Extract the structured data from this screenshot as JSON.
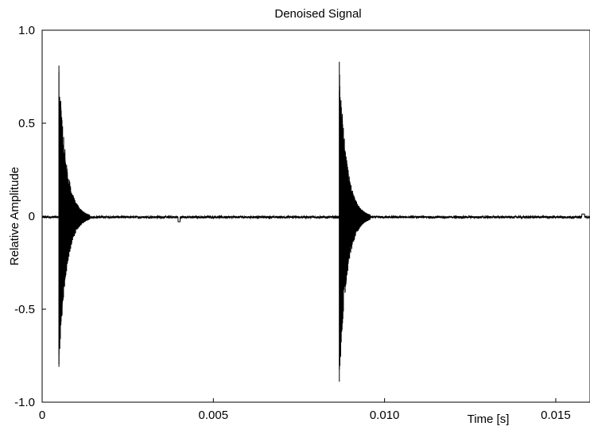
{
  "chart_data": {
    "type": "line",
    "title": "Denoised Signal",
    "xlabel": "Time [s]",
    "ylabel": "Relative Amplitude",
    "xlim": [
      0,
      0.016
    ],
    "ylim": [
      -1.0,
      1.0
    ],
    "x_ticks": [
      0,
      0.005,
      0.01,
      0.015
    ],
    "x_tick_labels": [
      "0",
      "0.005",
      "0.010",
      "0.015"
    ],
    "y_ticks": [
      1.0,
      0.5,
      0,
      -0.5,
      -1.0
    ],
    "y_tick_labels": [
      "1.0",
      "0.5",
      "0",
      "-0.5",
      "-1.0"
    ],
    "grid": false,
    "series": [
      {
        "color": "#000000",
        "baseline": -0.005,
        "bursts": [
          {
            "onset": 0.00049,
            "peak_pos": 0.81,
            "peak_neg": -0.81,
            "decay_s": 0.00022,
            "duration_s": 0.0009
          },
          {
            "onset": 0.00868,
            "peak_pos": 0.83,
            "peak_neg": -0.89,
            "decay_s": 0.00022,
            "duration_s": 0.0009
          }
        ],
        "sample_points": [
          [
            0,
            -0.005
          ],
          [
            0.00049,
            0.81
          ],
          [
            0.00049,
            -0.81
          ],
          [
            0.0006,
            0.45
          ],
          [
            0.0008,
            -0.1
          ],
          [
            0.0012,
            0.0
          ],
          [
            0.004,
            -0.03
          ],
          [
            0.00868,
            0.83
          ],
          [
            0.00868,
            -0.89
          ],
          [
            0.0009,
            0.0
          ],
          [
            0.0096,
            0.0
          ],
          [
            0.012,
            0.0
          ],
          [
            0.0158,
            0.01
          ],
          [
            0.016,
            0.0
          ]
        ]
      }
    ]
  }
}
